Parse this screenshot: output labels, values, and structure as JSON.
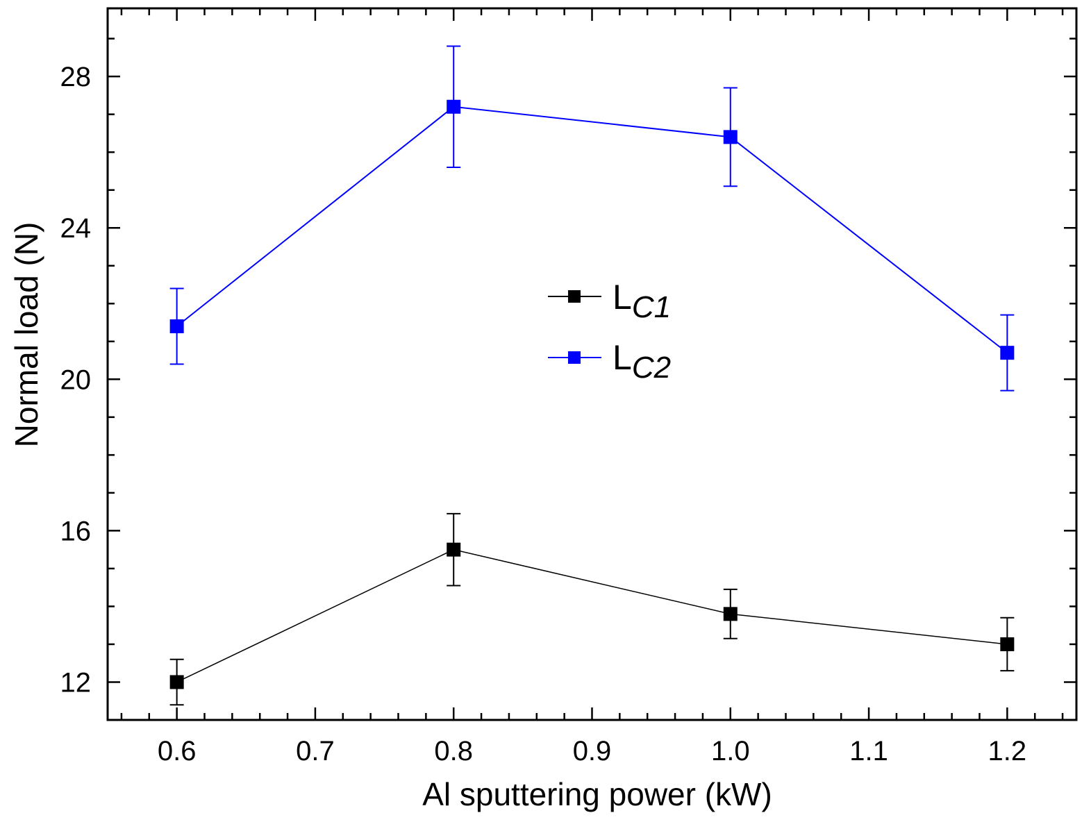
{
  "chart_data": {
    "type": "line",
    "title": "",
    "xlabel": "Al sputtering power (kW)",
    "ylabel": "Normal load (N)",
    "xlim": [
      0.55,
      1.25
    ],
    "ylim": [
      11.0,
      29.8
    ],
    "x": [
      0.6,
      0.8,
      1.0,
      1.2
    ],
    "x_ticks": [
      0.6,
      0.7,
      0.8,
      0.9,
      1.0,
      1.1,
      1.2
    ],
    "x_tick_labels": [
      "0.6",
      "0.7",
      "0.8",
      "0.9",
      "1.0",
      "1.1",
      "1.2"
    ],
    "x_minor_step": 0.02,
    "y_ticks": [
      12,
      16,
      20,
      24,
      28
    ],
    "y_tick_labels": [
      "12",
      "16",
      "20",
      "24",
      "28"
    ],
    "y_minor_step": 1,
    "legend_position": "center",
    "series": [
      {
        "name": "LC1",
        "legend_main": "L",
        "legend_sub": "C1",
        "color": "#000000",
        "values": [
          12.0,
          15.5,
          13.8,
          13.0
        ],
        "errors": [
          0.6,
          0.95,
          0.65,
          0.7
        ]
      },
      {
        "name": "LC2",
        "legend_main": "L",
        "legend_sub": "C2",
        "color": "#0000ff",
        "values": [
          21.4,
          27.2,
          26.4,
          20.7
        ],
        "errors": [
          1.0,
          1.6,
          1.3,
          1.0
        ]
      }
    ]
  }
}
